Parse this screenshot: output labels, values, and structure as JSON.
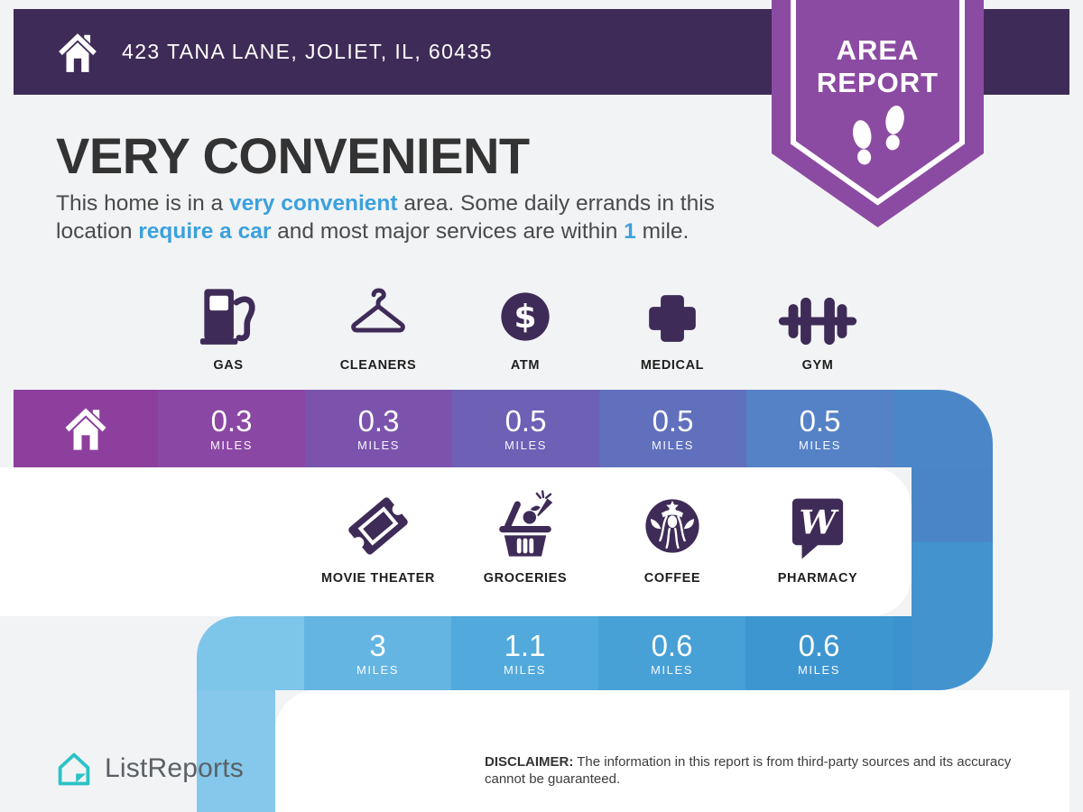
{
  "header": {
    "address": "423 TANA LANE, JOLIET, IL, 60435"
  },
  "badge": {
    "line1": "AREA",
    "line2": "REPORT"
  },
  "title": "VERY CONVENIENT",
  "paragraph": {
    "lines": [
      [
        {
          "text": "This home is in a "
        },
        {
          "text": "very convenient",
          "strong": true
        },
        {
          "text": " area. Some daily errands in this"
        }
      ],
      [
        {
          "text": "location "
        },
        {
          "text": "require a car",
          "strong": true
        },
        {
          "text": " and most major services are within "
        },
        {
          "text": "1",
          "strong": true
        },
        {
          "text": " mile."
        }
      ]
    ]
  },
  "services": {
    "row1": [
      {
        "label": "GAS",
        "icon": "gas-pump-icon"
      },
      {
        "label": "CLEANERS",
        "icon": "hanger-icon"
      },
      {
        "label": "ATM",
        "icon": "dollar-circle-icon"
      },
      {
        "label": "MEDICAL",
        "icon": "medical-cross-icon"
      },
      {
        "label": "GYM",
        "icon": "dumbbell-icon"
      }
    ],
    "row2": [
      {
        "label": "MOVIE THEATER",
        "icon": "movie-ticket-icon"
      },
      {
        "label": "GROCERIES",
        "icon": "grocery-basket-icon"
      },
      {
        "label": "COFFEE",
        "icon": "coffee-siren-icon"
      },
      {
        "label": "PHARMACY",
        "icon": "pharmacy-w-icon"
      }
    ]
  },
  "bars": {
    "row1": {
      "segments": [
        {
          "type": "home",
          "color": "#8d3f9d"
        },
        {
          "value": "0.3",
          "unit": "MILES",
          "color": "#8a47a4"
        },
        {
          "value": "0.3",
          "unit": "MILES",
          "color": "#7b53ad"
        },
        {
          "value": "0.5",
          "unit": "MILES",
          "color": "#6d60b5"
        },
        {
          "value": "0.5",
          "unit": "MILES",
          "color": "#6070bd"
        },
        {
          "value": "0.5",
          "unit": "MILES",
          "color": "#5581c6"
        },
        {
          "type": "tail",
          "color": "#4b87c8"
        }
      ]
    },
    "row2": {
      "segments": [
        {
          "type": "tail",
          "color": "#7ec5ea"
        },
        {
          "value": "3",
          "unit": "MILES",
          "color": "#64b5e2"
        },
        {
          "value": "1.1",
          "unit": "MILES",
          "color": "#52aadc"
        },
        {
          "value": "0.6",
          "unit": "MILES",
          "color": "#47a0d6"
        },
        {
          "value": "0.6",
          "unit": "MILES",
          "color": "#3e96d1"
        },
        {
          "type": "tail",
          "color": "#3b92cf"
        }
      ]
    }
  },
  "footer": {
    "brand": "ListReports",
    "disclaimer_label": "DISCLAIMER:",
    "disclaimer_text": " The information in this report is from third-party sources and its accuracy cannot be guaranteed."
  },
  "colors": {
    "header_bg": "#3f2b57",
    "badge_purple": "#8c4ba2",
    "icon_purple": "#3e2b57",
    "accent_blue": "#3ba1dd",
    "title_text": "#333333",
    "body_text": "#4a4a4a",
    "right_connector_top": "#4a86c7",
    "right_connector_bottom": "#4293ce",
    "left_connector": "#80c6ea",
    "page_bg": "#f2f3f5",
    "panel_white": "#ffffff",
    "brand_teal": "#2bc3c6",
    "brand_text": "#5b6065"
  }
}
